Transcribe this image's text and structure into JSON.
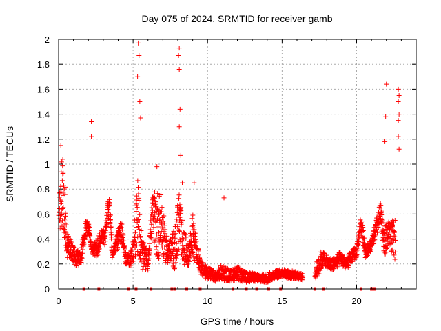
{
  "chart_data": {
    "type": "scatter",
    "title": "Day 075 of 2024, SRMTID for receiver gamb",
    "xlabel": "GPS time / hours",
    "ylabel": "SRMTID / TECUs",
    "xlim": [
      0,
      24
    ],
    "ylim": [
      0,
      2
    ],
    "x_ticks": [
      0,
      5,
      10,
      15,
      20
    ],
    "x_tick_labels": [
      "0",
      "5",
      "10",
      "15",
      "20"
    ],
    "y_ticks": [
      0,
      0.2,
      0.4,
      0.6,
      0.8,
      1,
      1.2,
      1.4,
      1.6,
      1.8,
      2
    ],
    "y_tick_labels": [
      "0",
      "0.2",
      "0.4",
      "0.6",
      "0.8",
      "1",
      "1.2",
      "1.4",
      "1.6",
      "1.8",
      "2"
    ],
    "grid": true,
    "marker": "+",
    "color": "#ff0000",
    "series": [
      {
        "name": "SRMTID",
        "envelope": [
          [
            0.0,
            0.45,
            0.65
          ],
          [
            0.25,
            0.5,
            1.1
          ],
          [
            0.4,
            0.35,
            0.9
          ],
          [
            0.55,
            0.25,
            0.45
          ],
          [
            0.8,
            0.25,
            0.4
          ],
          [
            1.0,
            0.2,
            0.35
          ],
          [
            1.2,
            0.18,
            0.32
          ],
          [
            1.5,
            0.2,
            0.3
          ],
          [
            1.8,
            0.4,
            0.55
          ],
          [
            2.0,
            0.45,
            0.55
          ],
          [
            2.2,
            0.28,
            0.35
          ],
          [
            2.6,
            0.25,
            0.4
          ],
          [
            2.9,
            0.35,
            0.5
          ],
          [
            3.1,
            0.35,
            0.45
          ],
          [
            3.4,
            0.6,
            0.8
          ],
          [
            3.6,
            0.25,
            0.3
          ],
          [
            3.9,
            0.3,
            0.45
          ],
          [
            4.2,
            0.4,
            0.55
          ],
          [
            4.5,
            0.2,
            0.3
          ],
          [
            4.8,
            0.18,
            0.28
          ],
          [
            5.0,
            0.2,
            0.4
          ],
          [
            5.3,
            0.3,
            0.9
          ],
          [
            5.6,
            0.15,
            0.4
          ],
          [
            6.0,
            0.15,
            0.3
          ],
          [
            6.3,
            0.5,
            0.75
          ],
          [
            6.6,
            0.2,
            0.8
          ],
          [
            6.9,
            0.3,
            0.75
          ],
          [
            7.2,
            0.2,
            0.45
          ],
          [
            7.5,
            0.2,
            0.4
          ],
          [
            7.8,
            0.15,
            0.5
          ],
          [
            8.1,
            0.3,
            0.8
          ],
          [
            8.4,
            0.2,
            0.5
          ],
          [
            8.7,
            0.18,
            0.35
          ],
          [
            9.0,
            0.25,
            0.6
          ],
          [
            9.3,
            0.2,
            0.35
          ],
          [
            9.6,
            0.1,
            0.22
          ],
          [
            10.0,
            0.08,
            0.18
          ],
          [
            10.5,
            0.06,
            0.14
          ],
          [
            11.0,
            0.07,
            0.2
          ],
          [
            11.5,
            0.06,
            0.15
          ],
          [
            12.0,
            0.07,
            0.18
          ],
          [
            12.5,
            0.05,
            0.14
          ],
          [
            13.0,
            0.06,
            0.13
          ],
          [
            13.5,
            0.05,
            0.12
          ],
          [
            14.0,
            0.05,
            0.12
          ],
          [
            14.5,
            0.08,
            0.15
          ],
          [
            15.0,
            0.1,
            0.16
          ],
          [
            15.5,
            0.08,
            0.15
          ],
          [
            16.0,
            0.08,
            0.14
          ],
          [
            16.4,
            0.07,
            0.12
          ],
          [
            17.2,
            0.08,
            0.15
          ],
          [
            17.5,
            0.12,
            0.3
          ],
          [
            17.8,
            0.2,
            0.3
          ],
          [
            18.1,
            0.15,
            0.25
          ],
          [
            18.5,
            0.15,
            0.25
          ],
          [
            18.9,
            0.2,
            0.3
          ],
          [
            19.3,
            0.15,
            0.25
          ],
          [
            19.6,
            0.2,
            0.3
          ],
          [
            20.0,
            0.25,
            0.35
          ],
          [
            20.3,
            0.45,
            0.6
          ],
          [
            20.6,
            0.25,
            0.35
          ],
          [
            21.0,
            0.3,
            0.4
          ],
          [
            21.3,
            0.4,
            0.55
          ],
          [
            21.6,
            0.5,
            0.7
          ],
          [
            21.9,
            0.25,
            0.5
          ],
          [
            22.2,
            0.35,
            0.55
          ],
          [
            22.6,
            0.2,
            0.55
          ]
        ],
        "spikes": [
          [
            0.15,
            1.15
          ],
          [
            2.2,
            1.34
          ],
          [
            2.2,
            1.22
          ],
          [
            5.35,
            1.97
          ],
          [
            5.4,
            1.87
          ],
          [
            5.3,
            1.7
          ],
          [
            5.45,
            1.5
          ],
          [
            5.5,
            1.37
          ],
          [
            6.6,
            0.98
          ],
          [
            8.1,
            1.93
          ],
          [
            8.05,
            1.87
          ],
          [
            8.1,
            1.76
          ],
          [
            8.15,
            1.44
          ],
          [
            8.1,
            1.3
          ],
          [
            8.2,
            1.07
          ],
          [
            8.3,
            0.85
          ],
          [
            9.1,
            0.85
          ],
          [
            11.1,
            0.73
          ],
          [
            22.0,
            1.64
          ],
          [
            21.95,
            1.38
          ],
          [
            21.9,
            1.18
          ],
          [
            22.8,
            1.6
          ],
          [
            22.85,
            1.55
          ],
          [
            22.8,
            1.5
          ],
          [
            22.85,
            1.4
          ],
          [
            22.8,
            1.35
          ],
          [
            22.8,
            1.22
          ],
          [
            22.85,
            1.12
          ]
        ]
      }
    ],
    "zero_markers": [
      1.7,
      2.7,
      4.7,
      5.2,
      6.2,
      7.6,
      7.8,
      8.6,
      9.5,
      11.7,
      12.6,
      13.3,
      14.1,
      14.9,
      17.2,
      17.8,
      20.3,
      21.0,
      21.2
    ]
  }
}
